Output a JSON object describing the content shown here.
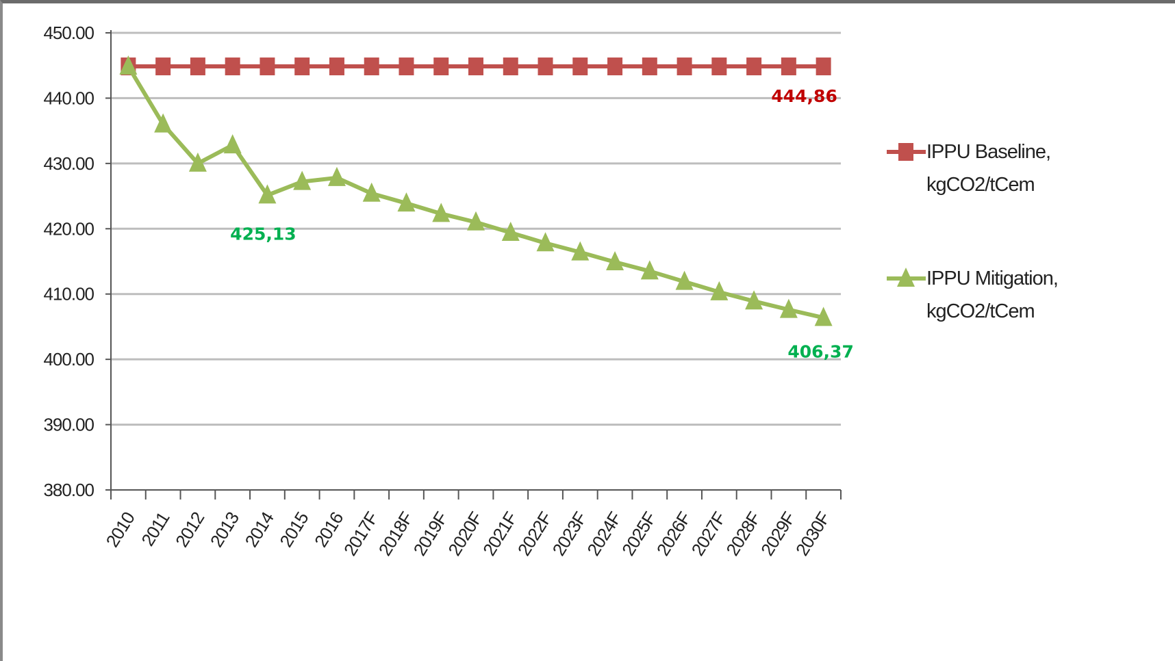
{
  "chart_data": {
    "type": "line",
    "x": [
      "2010",
      "2011",
      "2012",
      "2013",
      "2014",
      "2015",
      "2016",
      "2017F",
      "2018F",
      "2019F",
      "2020F",
      "2021F",
      "2022F",
      "2023F",
      "2024F",
      "2025F",
      "2026F",
      "2027F",
      "2028F",
      "2029F",
      "2030F"
    ],
    "ylim": [
      380,
      450
    ],
    "yticks": [
      "380.00",
      "390.00",
      "400.00",
      "410.00",
      "420.00",
      "430.00",
      "440.00",
      "450.00"
    ],
    "grid": true,
    "legend_position": "right",
    "series": [
      {
        "name": "IPPU Baseline, kgCO2/tCem",
        "legend_lines": [
          "IPPU Baseline,",
          "kgCO2/tCem"
        ],
        "color": "#c0504d",
        "marker": "square",
        "values": [
          444.86,
          444.86,
          444.86,
          444.86,
          444.86,
          444.86,
          444.86,
          444.86,
          444.86,
          444.86,
          444.86,
          444.86,
          444.86,
          444.86,
          444.86,
          444.86,
          444.86,
          444.86,
          444.86,
          444.86,
          444.86
        ]
      },
      {
        "name": "IPPU Mitigation, kgCO2/tCem",
        "legend_lines": [
          "IPPU Mitigation,",
          "kgCO2/tCem"
        ],
        "color": "#9bbb59",
        "marker": "triangle",
        "values": [
          444.86,
          436.0,
          430.0,
          432.8,
          425.13,
          427.2,
          427.8,
          425.4,
          423.9,
          422.3,
          421.0,
          419.4,
          417.8,
          416.4,
          414.9,
          413.5,
          411.9,
          410.3,
          408.9,
          407.6,
          406.37
        ]
      }
    ],
    "annotations": [
      {
        "text": "444,86",
        "series": 0,
        "index": 20,
        "color": "#c00000"
      },
      {
        "text": "425,13",
        "series": 1,
        "index": 4,
        "color": "#00b050"
      },
      {
        "text": "406,37",
        "series": 1,
        "index": 20,
        "color": "#00b050"
      }
    ]
  }
}
